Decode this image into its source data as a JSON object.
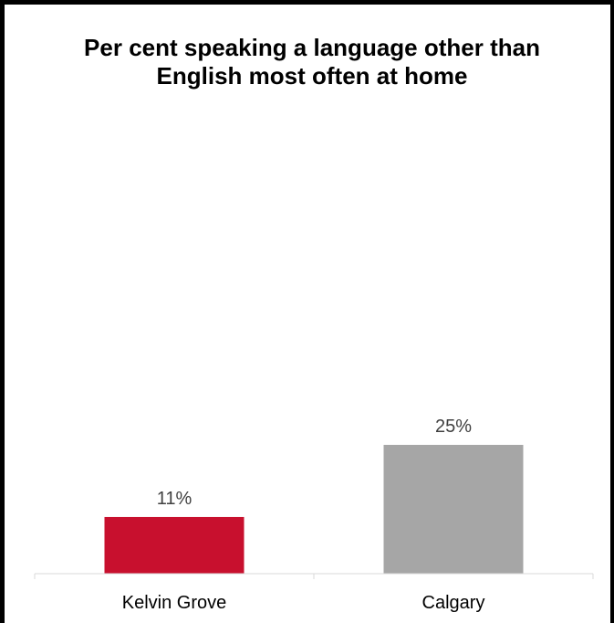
{
  "chart_data": {
    "type": "bar",
    "title": "Per cent speaking a language other than English most often at home",
    "categories": [
      "Kelvin Grove",
      "Calgary"
    ],
    "values": [
      11,
      25
    ],
    "value_labels": [
      "11%",
      "25%"
    ],
    "colors": [
      "#c8102e",
      "#a6a6a6"
    ],
    "ylim": [
      0,
      25
    ],
    "grid": false,
    "legend": "none"
  }
}
